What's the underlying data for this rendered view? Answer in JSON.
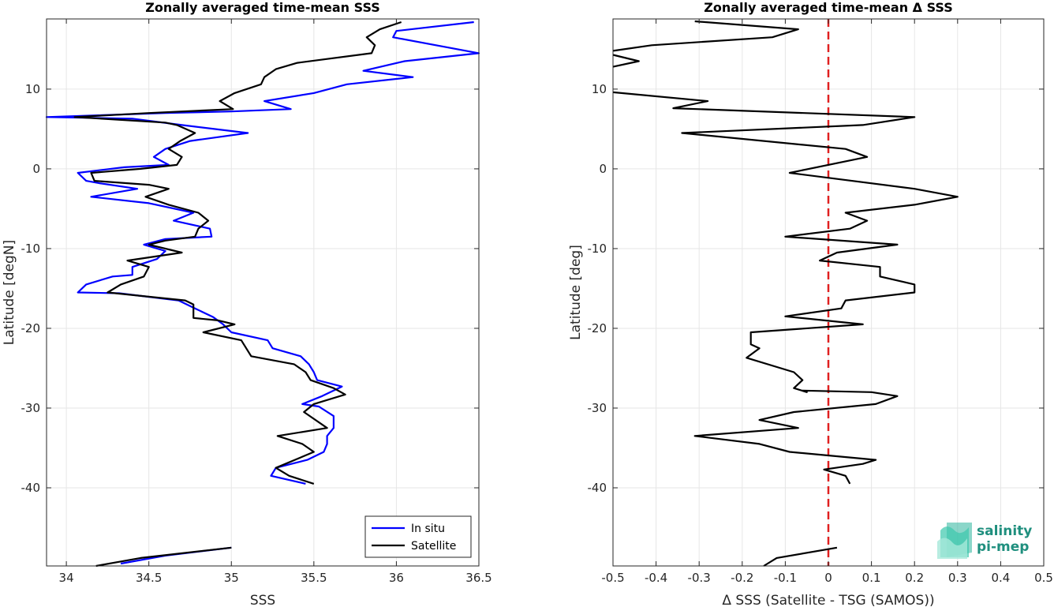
{
  "chart_data": [
    {
      "type": "line",
      "title": "Zonally averaged time-mean SSS",
      "xlabel": "SSS",
      "ylabel": "Latitude [degN]",
      "xlim": [
        33.88,
        36.5
      ],
      "ylim": [
        -49.8,
        18.8
      ],
      "xticks": [
        34,
        34.5,
        35,
        35.5,
        36,
        36.5
      ],
      "xtick_labels": [
        "34",
        "34.5",
        "35",
        "35.5",
        "36",
        "36.5"
      ],
      "yticks": [
        -40,
        -30,
        -20,
        -10,
        0,
        10
      ],
      "ytick_labels": [
        "-40",
        "-30",
        "-20",
        "-10",
        "0",
        "10"
      ],
      "grid": true,
      "legend": {
        "position": "bottom-right",
        "entries": [
          "In situ",
          "Satellite"
        ]
      },
      "series": [
        {
          "name": "In situ",
          "color": "#0000ff",
          "segments": [
            [
              [
                36.47,
                18.4
              ],
              [
                36.0,
                17.3
              ],
              [
                35.98,
                16.5
              ],
              [
                36.5,
                14.5
              ],
              [
                36.05,
                13.5
              ],
              [
                35.8,
                12.3
              ],
              [
                36.1,
                11.5
              ],
              [
                35.7,
                10.6
              ],
              [
                35.5,
                9.5
              ],
              [
                35.2,
                8.5
              ],
              [
                35.36,
                7.5
              ],
              [
                35.0,
                7.2
              ],
              [
                34.6,
                7.0
              ],
              [
                33.88,
                6.5
              ],
              [
                34.4,
                6.3
              ],
              [
                34.7,
                5.5
              ],
              [
                35.1,
                4.5
              ],
              [
                34.75,
                3.5
              ],
              [
                34.6,
                2.5
              ],
              [
                34.53,
                1.5
              ],
              [
                34.62,
                0.5
              ],
              [
                34.35,
                0.2
              ],
              [
                34.07,
                -0.5
              ],
              [
                34.12,
                -1.5
              ],
              [
                34.2,
                -1.8
              ],
              [
                34.43,
                -2.5
              ],
              [
                34.15,
                -3.5
              ],
              [
                34.5,
                -4.3
              ],
              [
                34.77,
                -5.5
              ],
              [
                34.65,
                -6.5
              ],
              [
                34.87,
                -7.5
              ],
              [
                34.88,
                -8.5
              ],
              [
                34.6,
                -8.8
              ],
              [
                34.47,
                -9.5
              ],
              [
                34.6,
                -10.3
              ],
              [
                34.55,
                -11.3
              ],
              [
                34.4,
                -12.3
              ],
              [
                34.4,
                -13.3
              ],
              [
                34.28,
                -13.5
              ],
              [
                34.12,
                -14.5
              ],
              [
                34.07,
                -15.5
              ],
              [
                34.32,
                -15.6
              ],
              [
                34.6,
                -16.3
              ],
              [
                34.68,
                -16.5
              ],
              [
                34.78,
                -17.5
              ],
              [
                34.89,
                -18.6
              ],
              [
                34.95,
                -19.5
              ],
              [
                35.0,
                -20.5
              ],
              [
                35.22,
                -21.5
              ],
              [
                35.25,
                -22.5
              ],
              [
                35.42,
                -23.5
              ],
              [
                35.47,
                -24.5
              ],
              [
                35.5,
                -25.5
              ],
              [
                35.52,
                -26.5
              ],
              [
                35.67,
                -27.3
              ],
              [
                35.55,
                -28.5
              ],
              [
                35.43,
                -29.5
              ],
              [
                35.53,
                -29.8
              ],
              [
                35.62,
                -31.0
              ],
              [
                35.62,
                -32.5
              ],
              [
                35.58,
                -33.5
              ],
              [
                35.58,
                -34.5
              ],
              [
                35.56,
                -35.5
              ],
              [
                35.46,
                -36.5
              ],
              [
                35.27,
                -37.5
              ],
              [
                35.24,
                -38.5
              ],
              [
                35.45,
                -39.5
              ]
            ],
            [
              [
                34.33,
                -49.5
              ],
              [
                34.6,
                -48.5
              ],
              [
                35.0,
                -47.5
              ]
            ]
          ]
        },
        {
          "name": "Satellite",
          "color": "#000000",
          "segments": [
            [
              [
                36.03,
                18.4
              ],
              [
                35.9,
                17.5
              ],
              [
                35.82,
                16.5
              ],
              [
                35.87,
                15.5
              ],
              [
                35.85,
                14.5
              ],
              [
                35.4,
                13.3
              ],
              [
                35.27,
                12.5
              ],
              [
                35.2,
                11.5
              ],
              [
                35.18,
                10.6
              ],
              [
                35.02,
                9.5
              ],
              [
                34.93,
                8.5
              ],
              [
                35.01,
                7.5
              ],
              [
                34.5,
                7.0
              ],
              [
                34.05,
                6.5
              ],
              [
                34.6,
                5.8
              ],
              [
                34.67,
                5.5
              ],
              [
                34.78,
                4.5
              ],
              [
                34.69,
                3.5
              ],
              [
                34.62,
                2.5
              ],
              [
                34.7,
                1.5
              ],
              [
                34.67,
                0.5
              ],
              [
                34.45,
                0.0
              ],
              [
                34.15,
                -0.5
              ],
              [
                34.17,
                -1.5
              ],
              [
                34.5,
                -2.0
              ],
              [
                34.62,
                -2.5
              ],
              [
                34.48,
                -3.5
              ],
              [
                34.62,
                -4.5
              ],
              [
                34.8,
                -5.5
              ],
              [
                34.86,
                -6.5
              ],
              [
                34.8,
                -7.5
              ],
              [
                34.78,
                -8.5
              ],
              [
                34.6,
                -9.0
              ],
              [
                34.5,
                -9.5
              ],
              [
                34.7,
                -10.5
              ],
              [
                34.37,
                -11.5
              ],
              [
                34.5,
                -12.3
              ],
              [
                34.47,
                -13.5
              ],
              [
                34.33,
                -14.5
              ],
              [
                34.25,
                -15.5
              ],
              [
                34.72,
                -16.5
              ],
              [
                34.77,
                -17.0
              ],
              [
                34.77,
                -18.7
              ],
              [
                34.92,
                -19.0
              ],
              [
                35.02,
                -19.5
              ],
              [
                34.83,
                -20.5
              ],
              [
                35.06,
                -21.5
              ],
              [
                35.12,
                -23.5
              ],
              [
                35.38,
                -24.5
              ],
              [
                35.45,
                -25.5
              ],
              [
                35.48,
                -26.5
              ],
              [
                35.62,
                -27.5
              ],
              [
                35.69,
                -28.3
              ],
              [
                35.5,
                -29.5
              ],
              [
                35.44,
                -30.5
              ],
              [
                35.58,
                -32.5
              ],
              [
                35.28,
                -33.5
              ],
              [
                35.43,
                -34.5
              ],
              [
                35.5,
                -35.5
              ],
              [
                35.27,
                -37.5
              ],
              [
                35.35,
                -38.5
              ],
              [
                35.5,
                -39.5
              ]
            ],
            [
              [
                34.18,
                -49.8
              ],
              [
                34.45,
                -48.8
              ],
              [
                35.0,
                -47.5
              ]
            ]
          ]
        }
      ]
    },
    {
      "type": "line",
      "title": "Zonally averaged time-mean Δ SSS",
      "xlabel": "Δ SSS (Satellite - TSG (SAMOS))",
      "ylabel": "Latitude [deg]",
      "xlim": [
        -0.5,
        0.5
      ],
      "ylim": [
        -49.8,
        18.8
      ],
      "xticks": [
        -0.5,
        -0.4,
        -0.3,
        -0.2,
        -0.1,
        0,
        0.1,
        0.2,
        0.3,
        0.4,
        0.5
      ],
      "xtick_labels": [
        "-0.5",
        "-0.4",
        "-0.3",
        "-0.2",
        "-0.1",
        "0",
        "0.1",
        "0.2",
        "0.3",
        "0.4",
        "0.5"
      ],
      "yticks": [
        -40,
        -30,
        -20,
        -10,
        0,
        10
      ],
      "ytick_labels": [
        "-40",
        "-30",
        "-20",
        "-10",
        "0",
        "10"
      ],
      "grid": true,
      "zero_line": {
        "x": 0,
        "color": "#e02020",
        "style": "dashed"
      },
      "series": [
        {
          "color": "#000000",
          "segments": [
            [
              [
                -0.31,
                18.5
              ],
              [
                -0.07,
                17.5
              ],
              [
                -0.13,
                16.5
              ],
              [
                -0.41,
                15.5
              ],
              [
                -0.5,
                14.8
              ]
            ],
            [
              [
                -0.5,
                14.3
              ],
              [
                -0.44,
                13.5
              ],
              [
                -0.5,
                12.8
              ]
            ],
            [
              [
                -0.5,
                9.6
              ],
              [
                -0.28,
                8.5
              ],
              [
                -0.36,
                7.6
              ],
              [
                0.2,
                6.5
              ],
              [
                0.08,
                5.5
              ],
              [
                -0.34,
                4.5
              ],
              [
                0.04,
                2.5
              ],
              [
                0.09,
                1.5
              ],
              [
                -0.09,
                -0.5
              ],
              [
                0.2,
                -2.5
              ],
              [
                0.3,
                -3.5
              ],
              [
                0.2,
                -4.5
              ],
              [
                0.04,
                -5.5
              ],
              [
                0.09,
                -6.5
              ],
              [
                0.05,
                -7.5
              ],
              [
                -0.1,
                -8.5
              ],
              [
                0.16,
                -9.5
              ],
              [
                0.02,
                -10.5
              ],
              [
                -0.02,
                -11.5
              ],
              [
                0.12,
                -12.3
              ],
              [
                0.12,
                -13.5
              ],
              [
                0.2,
                -14.5
              ],
              [
                0.2,
                -15.5
              ],
              [
                0.04,
                -16.5
              ],
              [
                0.03,
                -17.5
              ],
              [
                -0.1,
                -18.5
              ],
              [
                0.08,
                -19.5
              ],
              [
                -0.18,
                -20.5
              ],
              [
                -0.18,
                -22.0
              ],
              [
                -0.16,
                -22.5
              ],
              [
                -0.19,
                -23.7
              ],
              [
                -0.08,
                -25.5
              ],
              [
                -0.06,
                -26.5
              ],
              [
                -0.08,
                -27.5
              ],
              [
                -0.05,
                -28.0
              ],
              [
                -0.06,
                -27.8
              ],
              [
                0.1,
                -28.0
              ],
              [
                0.16,
                -28.5
              ],
              [
                0.11,
                -29.5
              ],
              [
                -0.08,
                -30.5
              ],
              [
                -0.16,
                -31.5
              ],
              [
                -0.07,
                -32.5
              ],
              [
                -0.31,
                -33.5
              ],
              [
                -0.16,
                -34.5
              ],
              [
                -0.09,
                -35.5
              ],
              [
                0.11,
                -36.5
              ],
              [
                0.08,
                -37.0
              ],
              [
                -0.01,
                -37.7
              ],
              [
                0.04,
                -38.5
              ],
              [
                0.05,
                -39.5
              ]
            ],
            [
              [
                -0.15,
                -49.8
              ],
              [
                -0.12,
                -48.8
              ],
              [
                0.02,
                -47.5
              ]
            ]
          ]
        }
      ]
    }
  ],
  "logo": {
    "line1": "salinity",
    "line2": "pi-mep",
    "color": "#1f8f7e"
  }
}
